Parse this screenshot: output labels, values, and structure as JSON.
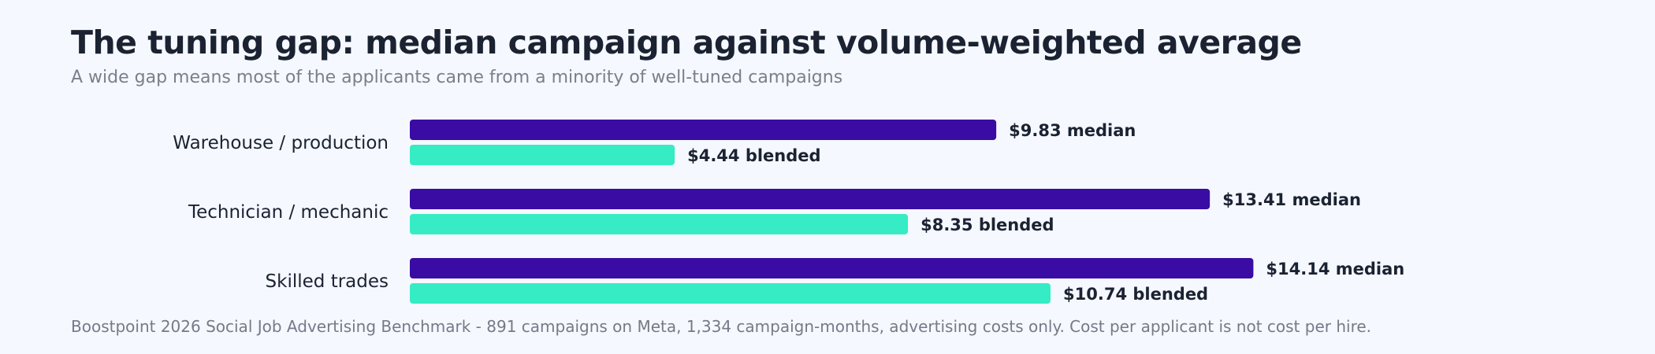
{
  "title": "The tuning gap: median campaign against volume-weighted average",
  "subtitle": "A wide gap means most of the applicants came from a minority of well-tuned campaigns",
  "footer": "Boostpoint 2026 Social Job Advertising Benchmark - 891 campaigns on Meta, 1,334 campaign-months, advertising costs only. Cost per applicant is not cost per hire.",
  "colors": {
    "median": "#3a0ca3",
    "blended": "#36ecc4",
    "text": "#1b2232"
  },
  "chart_data": {
    "type": "bar",
    "orientation": "horizontal",
    "categories": [
      "Warehouse / production",
      "Technician / mechanic",
      "Skilled trades"
    ],
    "series": [
      {
        "name": "median",
        "values": [
          9.83,
          13.41,
          14.14
        ],
        "labels": [
          "$9.83 median",
          "$13.41 median",
          "$14.14 median"
        ]
      },
      {
        "name": "blended",
        "values": [
          4.44,
          8.35,
          10.74
        ],
        "labels": [
          "$4.44 blended",
          "$8.35 blended",
          "$10.74 blended"
        ]
      }
    ],
    "title": "The tuning gap: median campaign against volume-weighted average",
    "grid": false,
    "legend": "none"
  }
}
